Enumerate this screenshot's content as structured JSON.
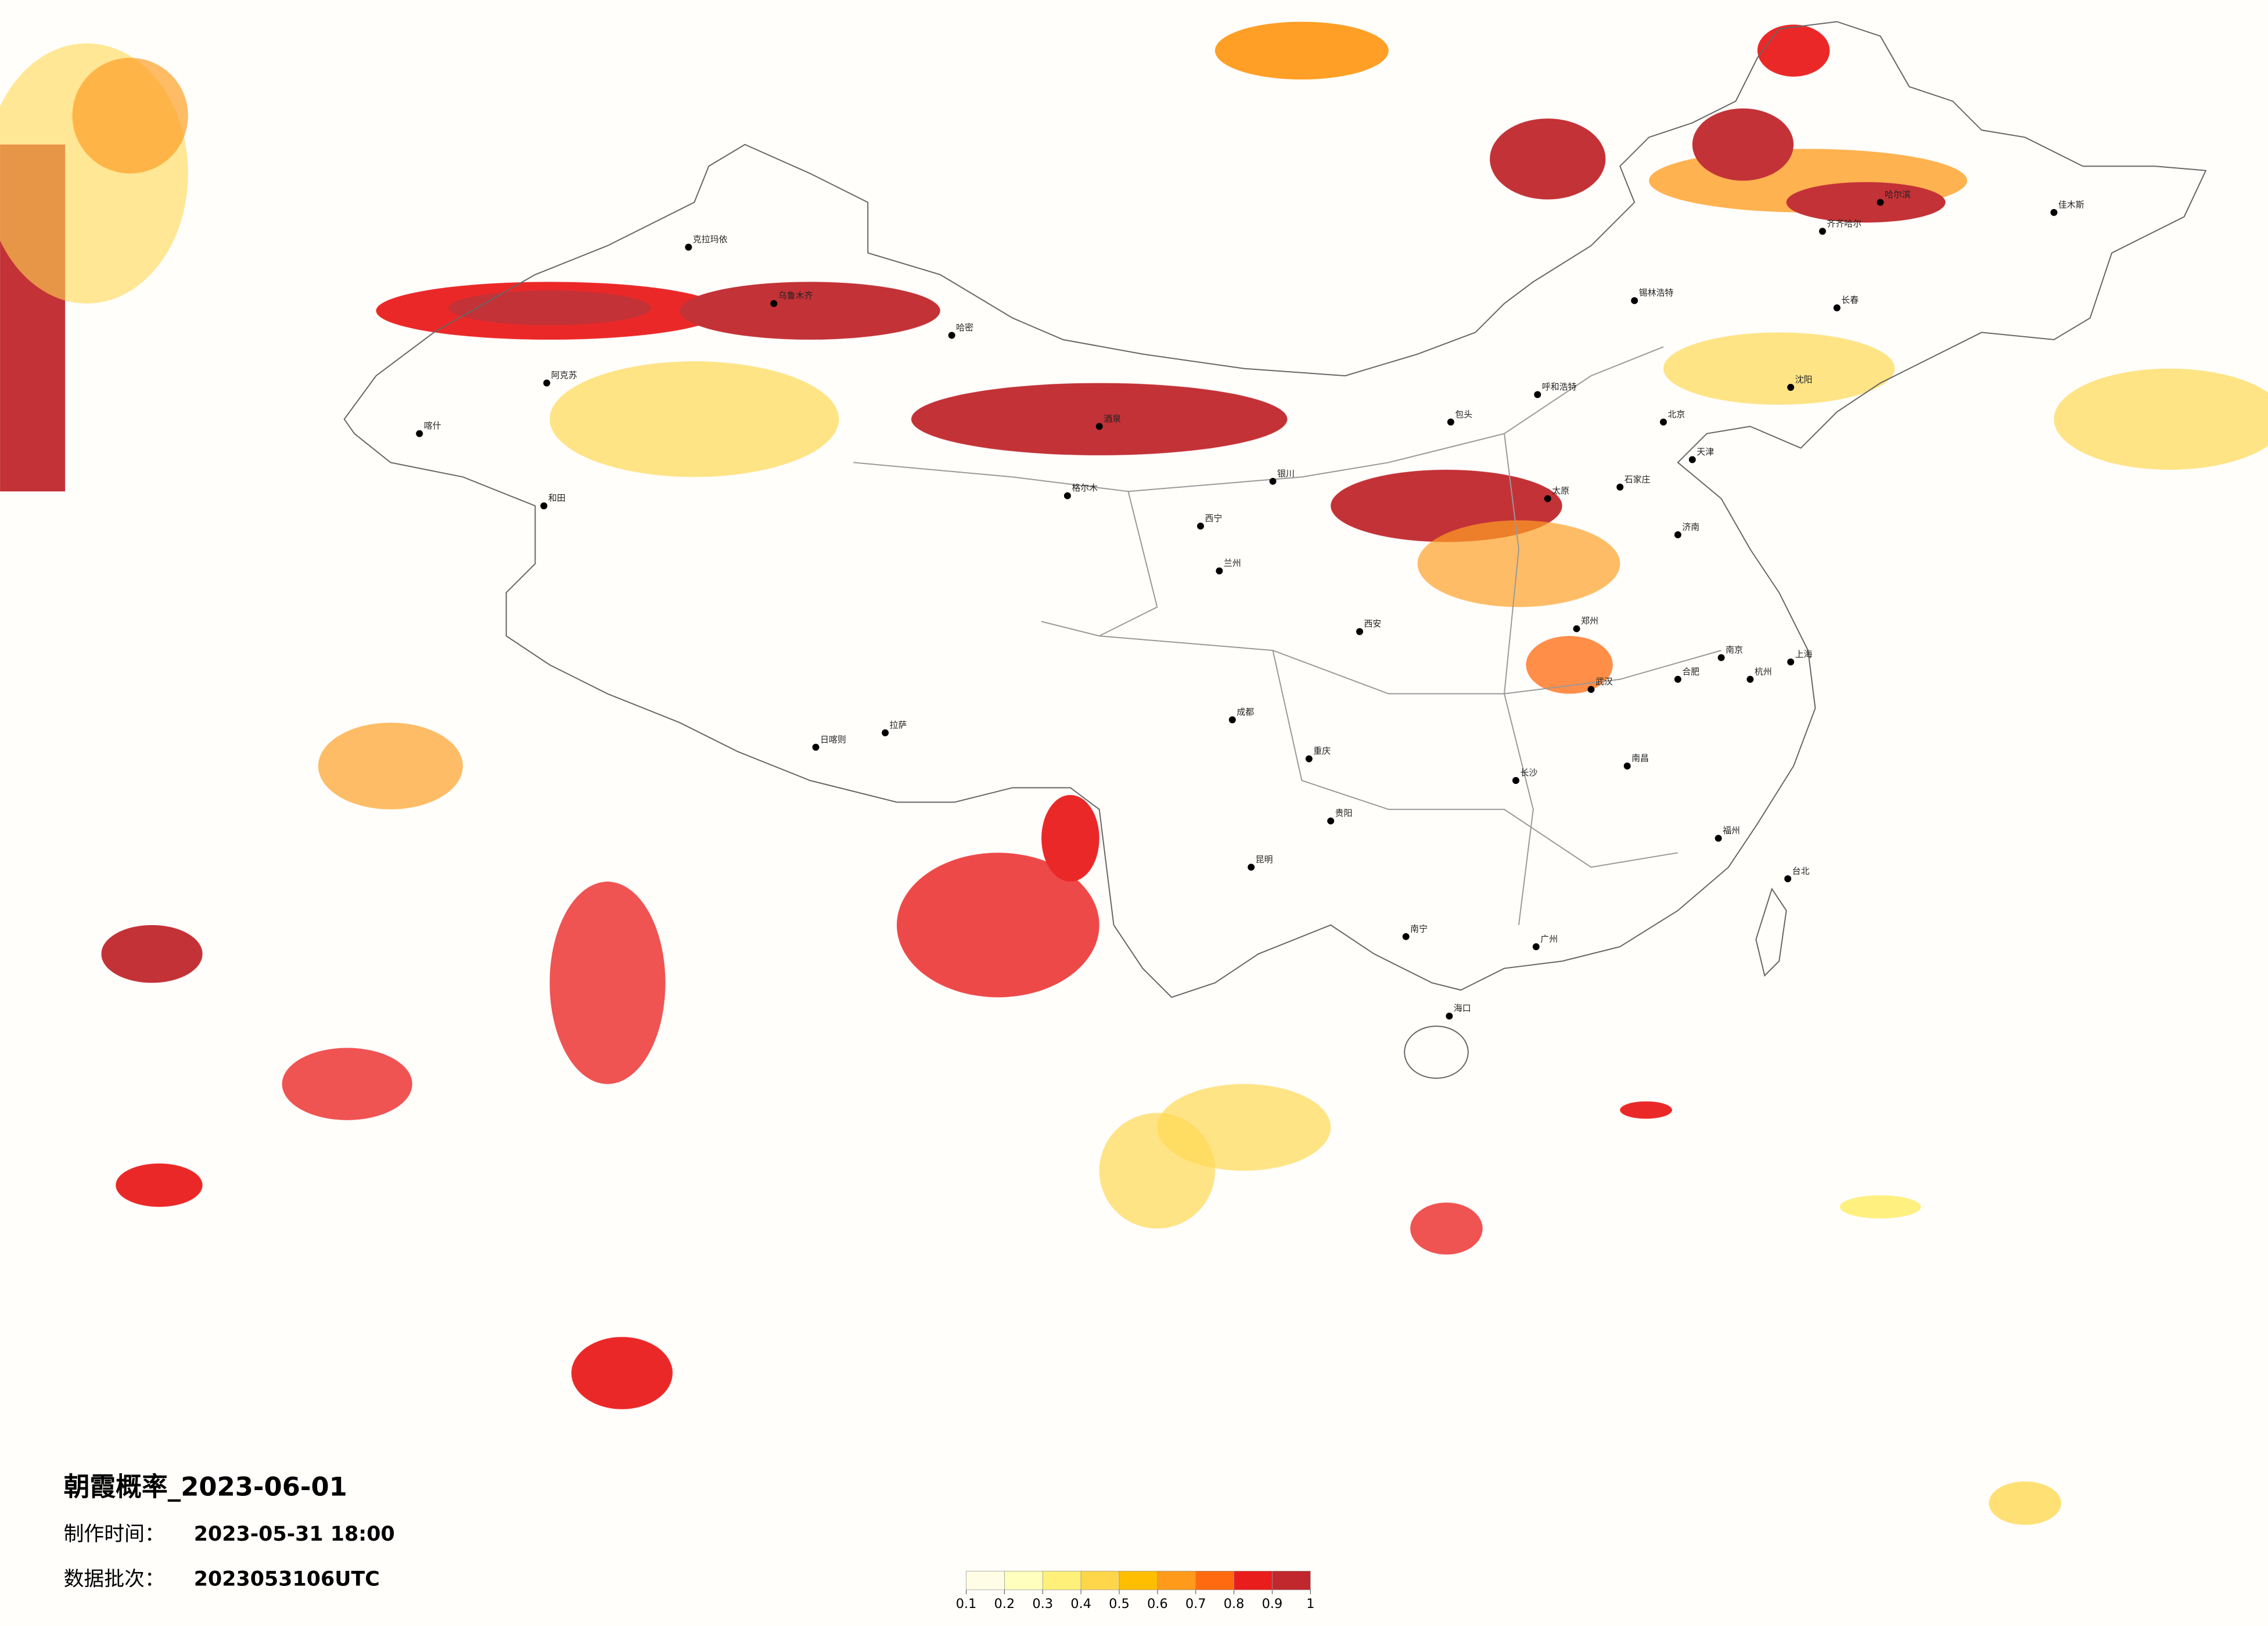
{
  "header": {
    "title": "朝霞概率_2023-06-01",
    "made_label": "制作时间：",
    "made_time": "2023-05-31 18:00",
    "batch_label": "数据批次：",
    "batch": "2023053106UTC"
  },
  "colorbar": {
    "ticks": [
      0.1,
      0.2,
      0.3,
      0.4,
      0.5,
      0.6,
      0.7,
      0.8,
      0.9,
      1
    ],
    "colors": [
      "#fffde6",
      "#ffffbe",
      "#fff07a",
      "#ffd64a",
      "#ffbf00",
      "#ff9a1a",
      "#ff6a10",
      "#ea1d1d",
      "#c0282d"
    ]
  },
  "cities": [
    "克拉玛依",
    "乌鲁木齐",
    "哈密",
    "阿克苏",
    "喀什",
    "和田",
    "酒泉",
    "格尔木",
    "拉萨",
    "日喀则",
    "西宁",
    "兰州",
    "银川",
    "呼和浩特",
    "包头",
    "北京",
    "天津",
    "石家庄",
    "太原",
    "郑州",
    "西安",
    "成都",
    "重庆",
    "贵阳",
    "昆明",
    "南宁",
    "广州",
    "长沙",
    "武汉",
    "南昌",
    "福州",
    "杭州",
    "上海",
    "南京",
    "合肥",
    "济南",
    "沈阳",
    "长春",
    "哈尔滨",
    "海口",
    "台北",
    "锡林浩特",
    "齐齐哈尔",
    "佳木斯"
  ]
}
